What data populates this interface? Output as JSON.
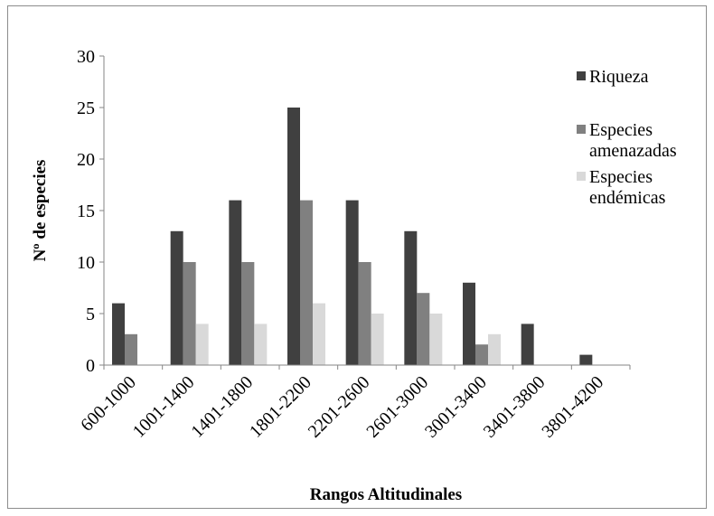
{
  "chart_data": {
    "type": "bar",
    "title": "",
    "xlabel": "Rangos Altitudinales",
    "ylabel": "Nº de especies",
    "ylim": [
      0,
      30
    ],
    "yticks": [
      "0",
      "5",
      "10",
      "15",
      "20",
      "25",
      "30"
    ],
    "grid": false,
    "legend_position": "right",
    "categories": [
      "600-1000",
      "1001-1400",
      "1401-1800",
      "1801-2200",
      "2201-2600",
      "2601-3000",
      "3001-3400",
      "3401-3800",
      "3801-4200"
    ],
    "series": [
      {
        "name": "Riqueza",
        "label_lines": [
          "Riqueza"
        ],
        "color": "#404040",
        "values": [
          6,
          13,
          16,
          25,
          16,
          13,
          8,
          4,
          1
        ]
      },
      {
        "name": "Especies amenazadas",
        "label_lines": [
          "Especies",
          "amenazadas"
        ],
        "color": "#808080",
        "values": [
          3,
          10,
          10,
          16,
          10,
          7,
          2,
          0,
          0
        ]
      },
      {
        "name": "Especies endémicas",
        "label_lines": [
          "Especies",
          "endémicas"
        ],
        "color": "#d9d9d9",
        "values": [
          0,
          4,
          4,
          6,
          5,
          5,
          3,
          0,
          0
        ]
      }
    ]
  }
}
